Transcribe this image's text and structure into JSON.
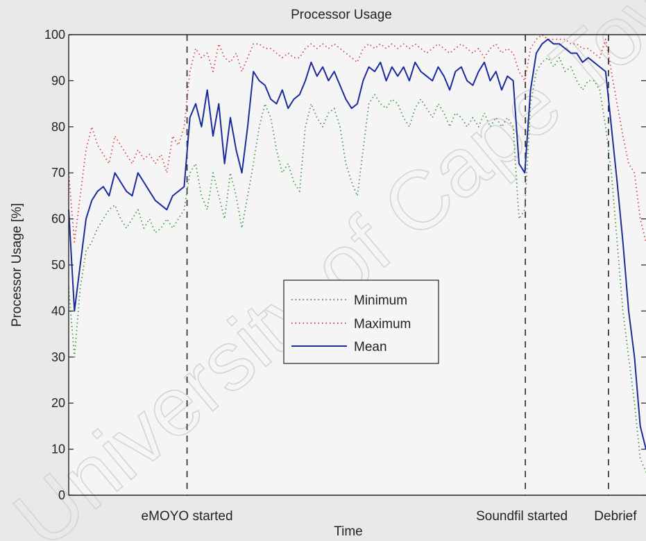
{
  "chart_data": {
    "type": "line",
    "title": "Processor Usage",
    "xlabel": "Time",
    "ylabel": "Processor Usage [%]",
    "ylim": [
      0,
      100
    ],
    "yticks": [
      0,
      10,
      20,
      30,
      40,
      50,
      60,
      70,
      80,
      90,
      100
    ],
    "xlim": [
      0,
      100
    ],
    "grid": false,
    "legend_position": "center",
    "watermark": "University of Cape Town",
    "event_markers": [
      {
        "label": "eMOYO started",
        "x": 20.5
      },
      {
        "label": "Soundfil started",
        "x": 79.1
      },
      {
        "label": "Debrief",
        "x": 93.5
      }
    ],
    "x": [
      0,
      1,
      2,
      3,
      4,
      5,
      6,
      7,
      8,
      9,
      10,
      11,
      12,
      13,
      14,
      15,
      16,
      17,
      18,
      19,
      20,
      21,
      22,
      23,
      24,
      25,
      26,
      27,
      28,
      29,
      30,
      31,
      32,
      33,
      34,
      35,
      36,
      37,
      38,
      39,
      40,
      41,
      42,
      43,
      44,
      45,
      46,
      47,
      48,
      49,
      50,
      51,
      52,
      53,
      54,
      55,
      56,
      57,
      58,
      59,
      60,
      61,
      62,
      63,
      64,
      65,
      66,
      67,
      68,
      69,
      70,
      71,
      72,
      73,
      74,
      75,
      76,
      77,
      78,
      79,
      80,
      81,
      82,
      83,
      84,
      85,
      86,
      87,
      88,
      89,
      90,
      91,
      92,
      93,
      94,
      95,
      96,
      97,
      98,
      99,
      100
    ],
    "series": [
      {
        "name": "Minimum",
        "color": "#3a9a3a",
        "style": "dotted",
        "values": [
          45,
          30,
          45,
          53,
          55,
          58,
          60,
          62,
          63,
          60,
          58,
          60,
          62,
          58,
          60,
          57,
          58,
          60,
          58,
          60,
          62,
          70,
          72,
          65,
          62,
          70,
          65,
          60,
          70,
          65,
          58,
          65,
          72,
          80,
          85,
          82,
          75,
          70,
          72,
          68,
          66,
          80,
          85,
          82,
          80,
          83,
          84,
          80,
          72,
          68,
          65,
          75,
          85,
          87,
          85,
          84,
          86,
          85,
          82,
          80,
          84,
          86,
          84,
          82,
          85,
          83,
          80,
          83,
          82,
          80,
          82,
          80,
          83,
          80,
          82,
          80,
          82,
          80,
          60,
          62,
          85,
          92,
          94,
          95,
          93,
          95,
          92,
          93,
          90,
          88,
          90,
          90,
          88,
          80,
          70,
          55,
          40,
          30,
          20,
          8,
          5
        ]
      },
      {
        "name": "Maximum",
        "color": "#d84040",
        "style": "dotted",
        "values": [
          70,
          55,
          65,
          75,
          80,
          76,
          74,
          72,
          78,
          76,
          74,
          72,
          75,
          73,
          74,
          72,
          74,
          70,
          78,
          76,
          80,
          92,
          97,
          95,
          96,
          92,
          98,
          95,
          94,
          96,
          92,
          95,
          98,
          98,
          97,
          97,
          96,
          95,
          96,
          95,
          95,
          97,
          98,
          97,
          98,
          97,
          98,
          97,
          96,
          95,
          94,
          97,
          98,
          97,
          98,
          97,
          98,
          97,
          98,
          97,
          98,
          97,
          96,
          97,
          98,
          97,
          96,
          97,
          98,
          97,
          96,
          97,
          95,
          97,
          98,
          96,
          97,
          96,
          92,
          90,
          97,
          99,
          100,
          99,
          99,
          99,
          99,
          98,
          98,
          97,
          97,
          96,
          95,
          99,
          92,
          85,
          78,
          72,
          70,
          60,
          55
        ]
      },
      {
        "name": "Mean",
        "color": "#1a2a9a",
        "style": "solid",
        "values": [
          62,
          40,
          50,
          60,
          64,
          66,
          67,
          65,
          70,
          68,
          66,
          65,
          70,
          68,
          66,
          64,
          63,
          62,
          65,
          66,
          67,
          82,
          85,
          80,
          88,
          78,
          85,
          72,
          82,
          75,
          70,
          80,
          92,
          90,
          89,
          86,
          85,
          88,
          84,
          86,
          87,
          90,
          94,
          91,
          93,
          90,
          92,
          89,
          86,
          84,
          85,
          90,
          93,
          92,
          94,
          90,
          93,
          91,
          93,
          90,
          94,
          92,
          91,
          90,
          93,
          91,
          88,
          92,
          93,
          90,
          89,
          92,
          94,
          90,
          92,
          88,
          91,
          90,
          72,
          70,
          88,
          96,
          98,
          99,
          98,
          98,
          97,
          96,
          96,
          94,
          95,
          94,
          93,
          92,
          80,
          68,
          55,
          40,
          30,
          15,
          10
        ]
      }
    ]
  }
}
